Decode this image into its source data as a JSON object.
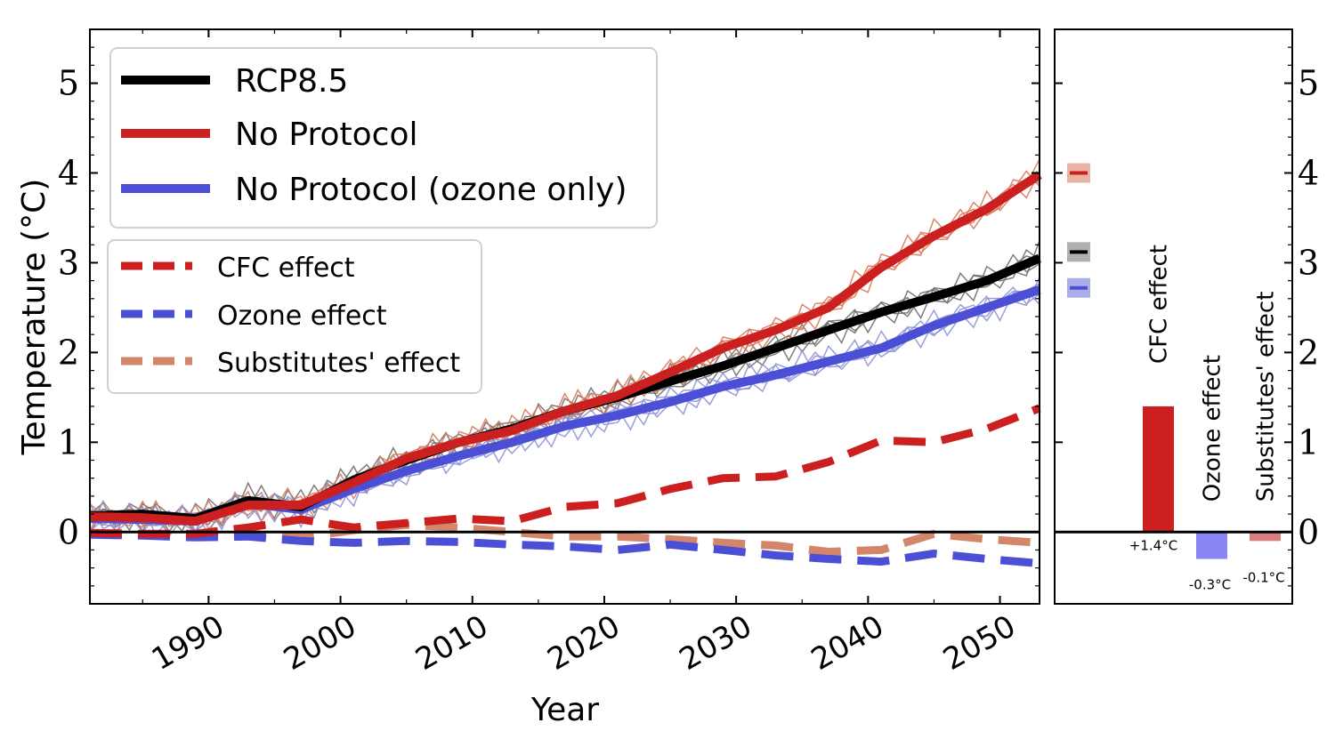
{
  "chart_data": [
    {
      "type": "line",
      "xlabel": "Year",
      "ylabel": "Temperature (°C)",
      "xlim": [
        1981,
        2053
      ],
      "ylim": [
        -0.8,
        5.6
      ],
      "x_ticks": [
        1990,
        2000,
        2010,
        2020,
        2030,
        2040,
        2050
      ],
      "y_ticks": [
        0,
        1,
        2,
        3,
        4,
        5
      ],
      "legend_main": [
        "RCP8.5",
        "No Protocol",
        "No Protocol (ozone only)"
      ],
      "legend_effects": [
        "CFC effect",
        "Ozone effect",
        "Substitutes' effect"
      ],
      "series": [
        {
          "name": "RCP8.5",
          "color": "#000000",
          "style": "solid",
          "x": [
            1981,
            1985,
            1989,
            1993,
            1997,
            2001,
            2005,
            2009,
            2013,
            2017,
            2021,
            2025,
            2029,
            2033,
            2037,
            2041,
            2045,
            2049,
            2053
          ],
          "values": [
            0.18,
            0.2,
            0.15,
            0.35,
            0.28,
            0.58,
            0.8,
            1.0,
            1.15,
            1.35,
            1.5,
            1.68,
            1.85,
            2.05,
            2.25,
            2.45,
            2.62,
            2.8,
            3.05
          ]
        },
        {
          "name": "No Protocol",
          "color": "#cc1f1f",
          "style": "solid",
          "x": [
            1981,
            1985,
            1989,
            1993,
            1997,
            2001,
            2005,
            2009,
            2013,
            2017,
            2021,
            2025,
            2029,
            2033,
            2037,
            2041,
            2045,
            2049,
            2053
          ],
          "values": [
            0.17,
            0.16,
            0.12,
            0.3,
            0.3,
            0.55,
            0.82,
            1.0,
            1.13,
            1.35,
            1.52,
            1.78,
            2.05,
            2.25,
            2.5,
            2.95,
            3.3,
            3.6,
            3.98
          ]
        },
        {
          "name": "No Protocol (ozone only)",
          "color": "#4a4fd6",
          "style": "solid",
          "x": [
            1981,
            1985,
            1989,
            1993,
            1997,
            2001,
            2005,
            2009,
            2013,
            2017,
            2021,
            2025,
            2029,
            2033,
            2037,
            2041,
            2045,
            2049,
            2053
          ],
          "values": [
            0.15,
            0.14,
            0.12,
            0.32,
            0.25,
            0.48,
            0.68,
            0.85,
            1.0,
            1.18,
            1.3,
            1.45,
            1.62,
            1.75,
            1.9,
            2.05,
            2.3,
            2.5,
            2.7
          ]
        },
        {
          "name": "CFC effect",
          "color": "#cc1f1f",
          "style": "dashed",
          "x": [
            1981,
            1985,
            1989,
            1993,
            1997,
            2001,
            2005,
            2009,
            2013,
            2017,
            2021,
            2025,
            2029,
            2033,
            2037,
            2041,
            2045,
            2049,
            2053
          ],
          "values": [
            -0.01,
            -0.02,
            -0.02,
            0.05,
            0.14,
            0.05,
            0.1,
            0.15,
            0.12,
            0.28,
            0.32,
            0.48,
            0.6,
            0.62,
            0.78,
            1.02,
            1.0,
            1.15,
            1.38
          ]
        },
        {
          "name": "Ozone effect",
          "color": "#4a4fd6",
          "style": "dashed",
          "x": [
            1981,
            1985,
            1989,
            1993,
            1997,
            2001,
            2005,
            2009,
            2013,
            2017,
            2021,
            2025,
            2029,
            2033,
            2037,
            2041,
            2045,
            2049,
            2053
          ],
          "values": [
            -0.03,
            -0.04,
            -0.06,
            -0.05,
            -0.1,
            -0.12,
            -0.1,
            -0.11,
            -0.14,
            -0.16,
            -0.2,
            -0.14,
            -0.2,
            -0.26,
            -0.3,
            -0.33,
            -0.24,
            -0.3,
            -0.35
          ]
        },
        {
          "name": "Substitutes' effect",
          "color": "#d4866a",
          "style": "dashed",
          "x": [
            1981,
            1985,
            1989,
            1993,
            1997,
            2001,
            2005,
            2009,
            2013,
            2017,
            2021,
            2025,
            2029,
            2033,
            2037,
            2041,
            2045,
            2049,
            2053
          ],
          "values": [
            -0.02,
            -0.03,
            -0.04,
            -0.02,
            -0.06,
            0.02,
            0.08,
            0.05,
            0.0,
            -0.05,
            -0.05,
            -0.08,
            -0.12,
            -0.15,
            -0.22,
            -0.2,
            -0.02,
            -0.08,
            -0.12
          ]
        }
      ]
    },
    {
      "type": "bar",
      "ylim": [
        -0.8,
        5.6
      ],
      "y_ticks": [
        0,
        1,
        2,
        3,
        4,
        5
      ],
      "categories": [
        "CFC effect",
        "Ozone effect",
        "Substitutes' effect"
      ],
      "values": [
        1.4,
        -0.3,
        -0.1
      ],
      "value_labels": [
        "+1.4°C",
        "-0.3°C",
        "-0.1°C"
      ],
      "colors": [
        "#cc1f1f",
        "#8a86f5",
        "#d97e7e"
      ],
      "endpoint_markers": [
        {
          "series": "No Protocol",
          "value": 4.0,
          "color": "#cc1f1f",
          "band": "#e8b3a0"
        },
        {
          "series": "RCP8.5",
          "value": 3.12,
          "color": "#000000",
          "band": "#b0b0b0"
        },
        {
          "series": "No Protocol (ozone only)",
          "value": 2.72,
          "color": "#4a4fd6",
          "band": "#a9aee8"
        }
      ]
    }
  ]
}
